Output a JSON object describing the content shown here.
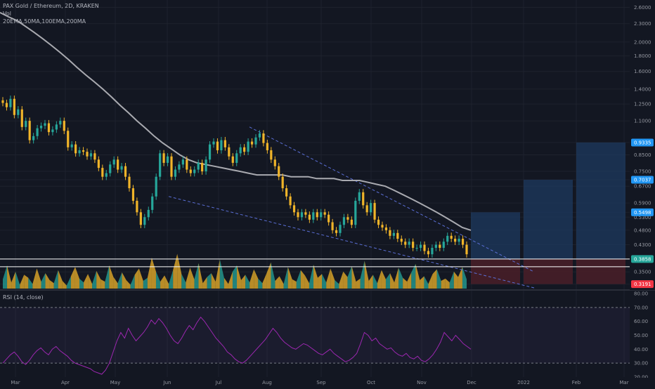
{
  "header": {
    "title": "PAX Gold / Ethereum, 2D, KRAKEN",
    "vol": "Vol",
    "ma": "20EMA,50MA,100EMA,200MA"
  },
  "rsi_header": {
    "label": "RSI (14, close)"
  },
  "colors": {
    "background": "#131722",
    "up": "#26a69a",
    "down": "#f0b429",
    "ma": "#a9aab0",
    "rsi": "#9c27b0",
    "target_box": "#1e3a5f",
    "stop_box": "#4a1f28",
    "accent": "#2196f3",
    "stop": "#f23645"
  },
  "chart_data": [
    {
      "type": "candlestick",
      "pair": "PAX Gold / Ethereum",
      "y_scale": "log",
      "ylim": [
        0.31,
        2.75
      ],
      "x_ticks": [
        "Mar",
        "Apr",
        "May",
        "Jun",
        "Jul",
        "Aug",
        "Sep",
        "Oct",
        "Nov",
        "Dec",
        "2022",
        "Feb",
        "Mar"
      ],
      "y_ticks": [
        "2.6000",
        "2.3000",
        "2.0000",
        "1.8000",
        "1.6000",
        "1.4000",
        "1.2500",
        "1.1000",
        "0.9335",
        "0.8500",
        "0.7500",
        "0.7037",
        "0.6700",
        "0.5900",
        "0.5498",
        "0.5300",
        "0.4800",
        "0.4300",
        "0.3858",
        "0.3500",
        "0.3191"
      ],
      "badges": [
        {
          "value": 0.9335,
          "label": "0.9335",
          "color": "#2196f3"
        },
        {
          "value": 0.7037,
          "label": "0.7037",
          "color": "#2196f3"
        },
        {
          "value": 0.5498,
          "label": "0.5498",
          "color": "#2196f3"
        },
        {
          "value": 0.3858,
          "label": "0.3858",
          "color": "#26a69a"
        },
        {
          "value": 0.3191,
          "label": "0.3191",
          "color": "#f23645"
        }
      ],
      "closes": [
        1.26,
        1.22,
        1.3,
        1.15,
        1.2,
        1.05,
        1.1,
        0.95,
        0.98,
        1.04,
        1.06,
        1.08,
        1.01,
        1.03,
        1.07,
        1.1,
        1.02,
        0.9,
        0.92,
        0.86,
        0.88,
        0.87,
        0.84,
        0.86,
        0.82,
        0.77,
        0.72,
        0.74,
        0.79,
        0.82,
        0.76,
        0.78,
        0.72,
        0.66,
        0.6,
        0.55,
        0.5,
        0.53,
        0.56,
        0.62,
        0.72,
        0.86,
        0.8,
        0.84,
        0.72,
        0.76,
        0.79,
        0.82,
        0.76,
        0.74,
        0.76,
        0.8,
        0.75,
        0.82,
        0.92,
        0.94,
        0.88,
        0.95,
        0.9,
        0.84,
        0.8,
        0.86,
        0.9,
        0.87,
        0.94,
        0.92,
        0.97,
        1.0,
        0.93,
        0.88,
        0.82,
        0.78,
        0.72,
        0.66,
        0.62,
        0.58,
        0.55,
        0.53,
        0.55,
        0.54,
        0.52,
        0.55,
        0.53,
        0.55,
        0.54,
        0.51,
        0.48,
        0.47,
        0.5,
        0.53,
        0.52,
        0.5,
        0.6,
        0.64,
        0.58,
        0.55,
        0.59,
        0.52,
        0.5,
        0.49,
        0.48,
        0.46,
        0.47,
        0.45,
        0.44,
        0.43,
        0.44,
        0.42,
        0.42,
        0.43,
        0.41,
        0.4,
        0.42,
        0.43,
        0.42,
        0.44,
        0.46,
        0.45,
        0.44,
        0.45,
        0.43,
        0.4
      ],
      "ma_line": [
        2.5,
        2.42,
        2.35,
        2.25,
        2.15,
        2.05,
        1.95,
        1.85,
        1.75,
        1.65,
        1.56,
        1.48,
        1.4,
        1.32,
        1.24,
        1.17,
        1.1,
        1.04,
        0.98,
        0.93,
        0.89,
        0.85,
        0.82,
        0.8,
        0.79,
        0.78,
        0.77,
        0.76,
        0.75,
        0.74,
        0.73,
        0.73,
        0.73,
        0.73,
        0.72,
        0.72,
        0.72,
        0.71,
        0.71,
        0.71,
        0.7,
        0.7,
        0.7,
        0.69,
        0.68,
        0.67,
        0.65,
        0.63,
        0.61,
        0.59,
        0.57,
        0.55,
        0.53,
        0.51,
        0.49,
        0.48
      ],
      "tradeplan": {
        "entry": 0.3858,
        "stop": 0.3191,
        "targets": [
          0.5498,
          0.7037,
          0.9335
        ]
      }
    },
    {
      "type": "area",
      "title": "Vol",
      "values": [
        12,
        30,
        8,
        22,
        5,
        18,
        14,
        6,
        26,
        9,
        20,
        11,
        7,
        24,
        10,
        4,
        16,
        28,
        13,
        8,
        19,
        6,
        23,
        12,
        9,
        30,
        15,
        7,
        21,
        11,
        5,
        18,
        26,
        10,
        14,
        40,
        22,
        9,
        17,
        6,
        24,
        45,
        19,
        8,
        27,
        12,
        33,
        7,
        15,
        20,
        9,
        38,
        14,
        6,
        22,
        30,
        11,
        18,
        8,
        25,
        13,
        7,
        20,
        34,
        10,
        16,
        6,
        28,
        12,
        9,
        24,
        17,
        7,
        31,
        14,
        19,
        8,
        26,
        11,
        6,
        22,
        15,
        29,
        9,
        13,
        36,
        10,
        18,
        7,
        24,
        12,
        20,
        8,
        27,
        14,
        9,
        21,
        32,
        11,
        16,
        6,
        19,
        25,
        10,
        13,
        8,
        22,
        15,
        28,
        12
      ],
      "up_ratio": 0.5
    },
    {
      "type": "line",
      "title": "RSI (14, close)",
      "y_ticks": [
        "80.00",
        "70.00",
        "60.00",
        "50.00",
        "40.00",
        "30.00",
        "20.00"
      ],
      "ylim": [
        20,
        80
      ],
      "values": [
        30,
        33,
        36,
        38,
        35,
        31,
        29,
        32,
        36,
        39,
        41,
        38,
        36,
        40,
        42,
        39,
        37,
        35,
        32,
        30,
        29,
        28,
        27,
        26,
        24,
        23,
        22,
        25,
        30,
        38,
        46,
        52,
        48,
        55,
        50,
        46,
        49,
        52,
        56,
        61,
        58,
        62,
        59,
        55,
        50,
        46,
        44,
        48,
        53,
        57,
        54,
        59,
        63,
        60,
        56,
        52,
        48,
        45,
        42,
        38,
        36,
        33,
        31,
        30,
        32,
        35,
        38,
        41,
        44,
        47,
        51,
        55,
        52,
        48,
        45,
        43,
        41,
        40,
        42,
        44,
        43,
        41,
        39,
        37,
        36,
        38,
        40,
        37,
        35,
        33,
        31,
        32,
        34,
        37,
        44,
        52,
        50,
        46,
        48,
        44,
        42,
        40,
        41,
        38,
        36,
        35,
        37,
        34,
        33,
        35,
        32,
        31,
        33,
        36,
        40,
        45,
        52,
        49,
        46,
        50,
        47,
        44,
        42,
        40
      ]
    }
  ]
}
